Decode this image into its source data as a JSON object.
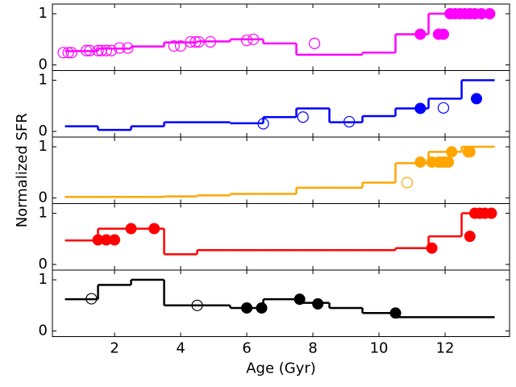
{
  "chart_data": [
    {
      "type": "step",
      "color": "#ff00ff",
      "xlim": [
        0.12,
        13.95
      ],
      "ylim": [
        -0.11,
        1.19
      ],
      "xticks": [
        2,
        4,
        6,
        8,
        10,
        12
      ],
      "yticks": [
        0,
        1
      ],
      "step_x": [
        0.5,
        1.5,
        2.5,
        3.5,
        4.5,
        5.5,
        6.5,
        7.5,
        8.5,
        9.5,
        10.5,
        11.5,
        12.5,
        13.5
      ],
      "values": [
        0.27,
        0.32,
        0.36,
        0.44,
        0.46,
        0.5,
        0.42,
        0.2,
        0.2,
        0.24,
        0.6,
        1.0,
        1.0
      ],
      "open_x": [
        0.45,
        0.6,
        0.7,
        1.15,
        1.25,
        1.5,
        1.6,
        1.75,
        1.9,
        2.15,
        2.4,
        3.8,
        4.0,
        4.3,
        4.45,
        4.55,
        4.9,
        6.0,
        6.2,
        8.05
      ],
      "open_y": [
        0.24,
        0.24,
        0.24,
        0.28,
        0.28,
        0.28,
        0.28,
        0.28,
        0.28,
        0.33,
        0.33,
        0.37,
        0.37,
        0.45,
        0.45,
        0.45,
        0.45,
        0.48,
        0.5,
        0.42
      ],
      "filled_x": [
        11.25,
        11.8,
        11.95,
        12.15,
        12.3,
        12.45,
        12.6,
        12.75,
        12.9,
        13.1,
        13.35
      ],
      "filled_y": [
        0.6,
        0.6,
        0.6,
        1,
        1,
        1,
        1,
        1,
        1,
        1,
        1
      ]
    },
    {
      "type": "step",
      "color": "#0000ff",
      "xlim": [
        0.12,
        13.95
      ],
      "ylim": [
        -0.11,
        1.19
      ],
      "xticks": [
        2,
        4,
        6,
        8,
        10,
        12
      ],
      "yticks": [
        0,
        1
      ],
      "step_x": [
        0.5,
        1.5,
        2.5,
        3.5,
        4.5,
        5.5,
        6.5,
        7.5,
        8.5,
        9.5,
        10.5,
        11.5,
        12.5,
        13.5
      ],
      "values": [
        0.1,
        0.03,
        0.1,
        0.18,
        0.18,
        0.16,
        0.28,
        0.45,
        0.18,
        0.3,
        0.45,
        0.64,
        1.0
      ],
      "open_x": [
        6.5,
        7.7,
        9.1,
        11.95
      ],
      "open_y": [
        0.15,
        0.28,
        0.19,
        0.46
      ],
      "filled_x": [
        11.25,
        12.95
      ],
      "filled_y": [
        0.45,
        0.64
      ]
    },
    {
      "type": "step",
      "color": "#ffa500",
      "xlim": [
        0.12,
        13.95
      ],
      "ylim": [
        -0.11,
        1.19
      ],
      "xticks": [
        2,
        4,
        6,
        8,
        10,
        12
      ],
      "yticks": [
        0,
        1
      ],
      "ylabel": "Normalized SFR",
      "step_x": [
        0.5,
        1.5,
        2.5,
        3.5,
        4.5,
        5.5,
        6.5,
        7.5,
        8.5,
        9.5,
        10.5,
        11.5,
        12.5,
        13.5
      ],
      "values": [
        0.02,
        0.02,
        0.02,
        0.03,
        0.05,
        0.08,
        0.08,
        0.2,
        0.2,
        0.3,
        0.68,
        0.9,
        1.0
      ],
      "open_x": [
        10.85
      ],
      "open_y": [
        0.3
      ],
      "filled_x": [
        11.25,
        11.6,
        11.8,
        11.9,
        12.0,
        12.1,
        12.2,
        12.7,
        12.75
      ],
      "filled_y": [
        0.7,
        0.7,
        0.7,
        0.7,
        0.7,
        0.7,
        0.9,
        0.9,
        0.9
      ]
    },
    {
      "type": "step",
      "color": "#ff0000",
      "xlim": [
        0.12,
        13.95
      ],
      "ylim": [
        -0.11,
        1.19
      ],
      "xticks": [
        2,
        4,
        6,
        8,
        10,
        12
      ],
      "yticks": [
        0,
        1
      ],
      "step_x": [
        0.5,
        1.5,
        2.5,
        3.5,
        4.5,
        5.5,
        6.5,
        7.5,
        8.5,
        9.5,
        10.5,
        11.5,
        12.5,
        13.5
      ],
      "values": [
        0.47,
        0.7,
        0.7,
        0.2,
        0.28,
        0.28,
        0.28,
        0.28,
        0.28,
        0.28,
        0.32,
        0.55,
        1.0
      ],
      "open_x": [],
      "open_y": [],
      "filled_x": [
        1.5,
        1.75,
        2.0,
        2.5,
        3.2,
        11.6,
        12.75,
        12.9,
        13.05,
        13.2,
        13.4
      ],
      "filled_y": [
        0.48,
        0.48,
        0.48,
        0.7,
        0.7,
        0.32,
        0.55,
        1,
        1,
        1,
        1
      ]
    },
    {
      "type": "step",
      "color": "#000000",
      "xlim": [
        0.12,
        13.95
      ],
      "ylim": [
        -0.11,
        1.19
      ],
      "xticks": [
        2,
        4,
        6,
        8,
        10,
        12
      ],
      "yticks": [
        0,
        1
      ],
      "xlabel": "Age (Gyr)",
      "step_x": [
        0.5,
        1.5,
        2.5,
        3.5,
        4.5,
        5.5,
        6.5,
        7.5,
        8.5,
        9.5,
        10.5,
        11.5,
        12.5,
        13.5
      ],
      "values": [
        0.62,
        0.9,
        1.0,
        0.5,
        0.5,
        0.45,
        0.62,
        0.55,
        0.45,
        0.35,
        0.27,
        0.27,
        0.27
      ],
      "open_x": [
        1.3,
        4.5
      ],
      "open_y": [
        0.63,
        0.5
      ],
      "filled_x": [
        6.0,
        6.45,
        7.6,
        8.15,
        10.5
      ],
      "filled_y": [
        0.45,
        0.45,
        0.62,
        0.53,
        0.35
      ]
    }
  ]
}
